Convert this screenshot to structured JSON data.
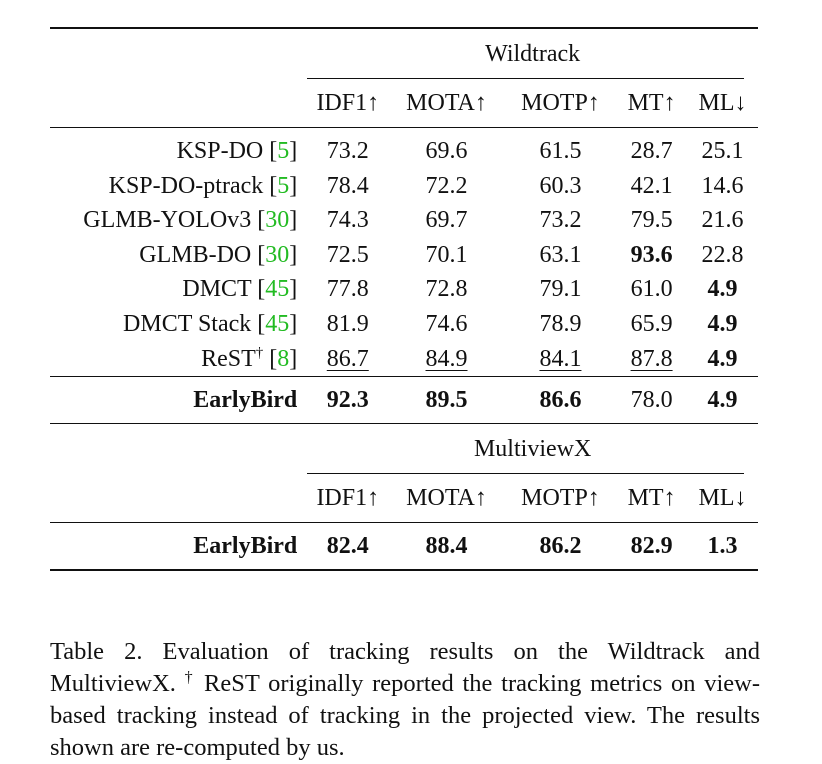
{
  "table": {
    "datasets": [
      "Wildtrack",
      "MultiviewX"
    ],
    "columns": [
      "IDF1↑",
      "MOTA↑",
      "MOTP↑",
      "MT↑",
      "ML↓"
    ],
    "wildtrack_rows": [
      {
        "name": "KSP-DO",
        "cite": "5",
        "dagger": "",
        "values": [
          "73.2",
          "69.6",
          "61.5",
          "28.7",
          "25.1"
        ]
      },
      {
        "name": "KSP-DO-ptrack",
        "cite": "5",
        "dagger": "",
        "values": [
          "78.4",
          "72.2",
          "60.3",
          "42.1",
          "14.6"
        ]
      },
      {
        "name": "GLMB-YOLOv3",
        "cite": "30",
        "dagger": "",
        "values": [
          "74.3",
          "69.7",
          "73.2",
          "79.5",
          "21.6"
        ]
      },
      {
        "name": "GLMB-DO",
        "cite": "30",
        "dagger": "",
        "values": [
          "72.5",
          "70.1",
          "63.1",
          "93.6",
          "22.8"
        ]
      },
      {
        "name": "DMCT",
        "cite": "45",
        "dagger": "",
        "values": [
          "77.8",
          "72.8",
          "79.1",
          "61.0",
          "4.9"
        ]
      },
      {
        "name": "DMCT Stack",
        "cite": "45",
        "dagger": "",
        "values": [
          "81.9",
          "74.6",
          "78.9",
          "65.9",
          "4.9"
        ]
      },
      {
        "name": "ReST",
        "cite": "8",
        "dagger": "†",
        "values": [
          "86.7",
          "84.9",
          "84.1",
          "87.8",
          "4.9"
        ]
      }
    ],
    "wildtrack_ours": {
      "name": "EarlyBird",
      "values": [
        "92.3",
        "89.5",
        "86.6",
        "78.0",
        "4.9"
      ]
    },
    "multiviewx_ours": {
      "name": "EarlyBird",
      "values": [
        "82.4",
        "88.4",
        "86.2",
        "82.9",
        "1.3"
      ]
    }
  },
  "caption": {
    "text_1": "Table 2. Evaluation of tracking results on the Wildtrack and MultiviewX.",
    "dagger": "†",
    "text_2": "ReST originally reported the tracking metrics on view-based tracking instead of tracking in the projected view.  The results shown are re-computed by us."
  },
  "style": {
    "citation_color": "#22bb22",
    "text_color": "#111111"
  }
}
